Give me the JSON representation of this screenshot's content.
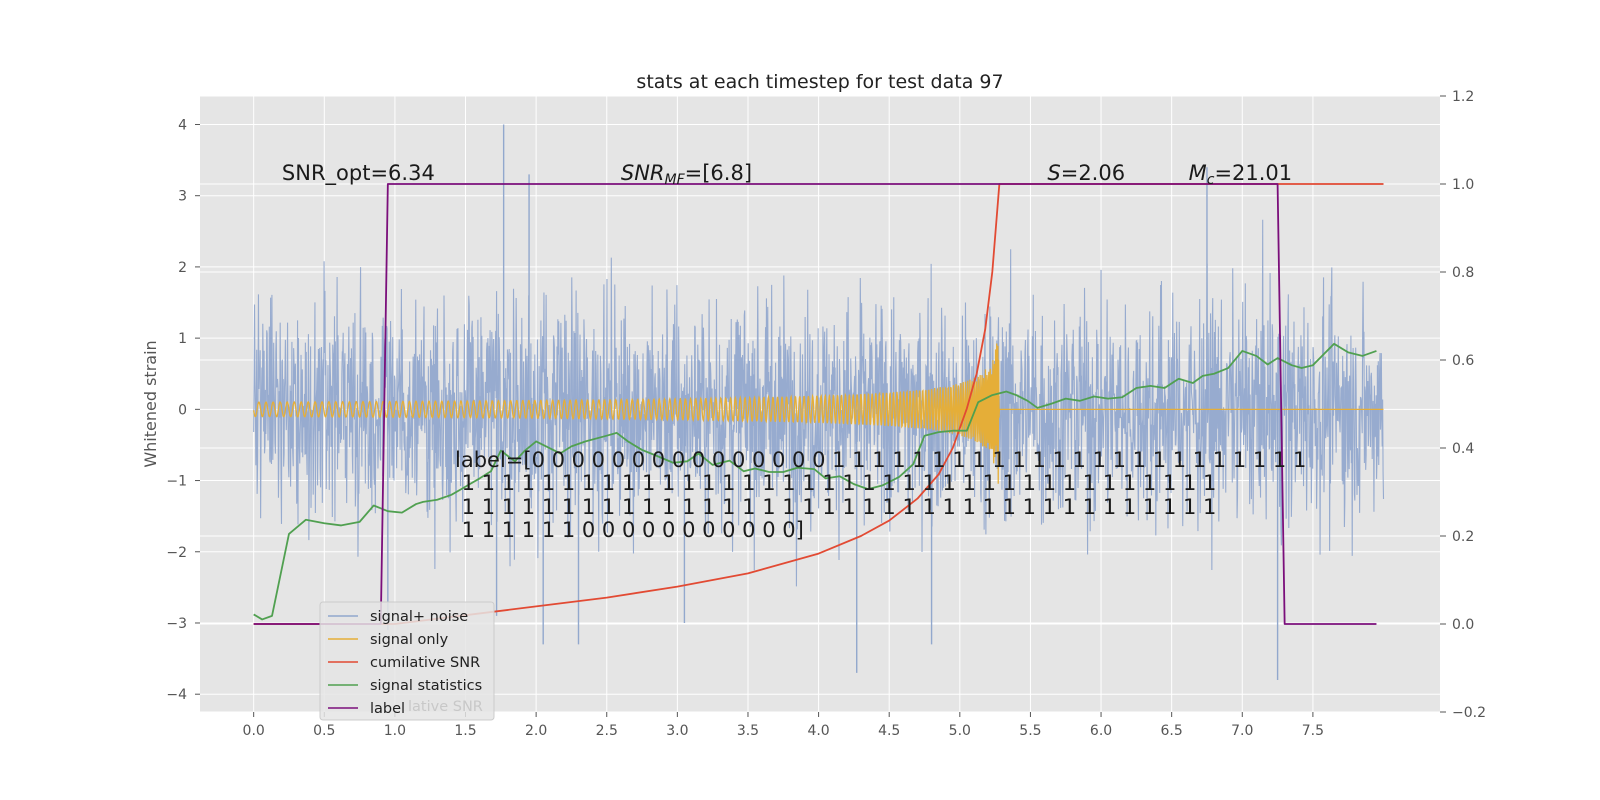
{
  "chart_data": {
    "type": "line",
    "title": "stats at each timestep for test data 97",
    "ylabel": "Whitened strain",
    "xlim": [
      -0.38,
      8.4
    ],
    "ylim": [
      -4.25,
      4.4
    ],
    "ylim_right": [
      -0.2,
      1.2
    ],
    "grid": true,
    "x_ticks": [
      "0.0",
      "0.5",
      "1.0",
      "1.5",
      "2.0",
      "2.5",
      "3.0",
      "3.5",
      "4.0",
      "4.5",
      "5.0",
      "5.5",
      "6.0",
      "6.5",
      "7.0",
      "7.5"
    ],
    "y_ticks": [
      "−4",
      "−3",
      "−2",
      "−1",
      "0",
      "1",
      "2",
      "3",
      "4"
    ],
    "y_right_ticks": [
      "−0.2",
      "0.0",
      "0.2",
      "0.4",
      "0.6",
      "0.8",
      "1.0",
      "1.2"
    ],
    "annotations": [
      {
        "text": "SNR_opt=6.34",
        "x": 0.2,
        "y": 3.22
      },
      {
        "text": "SNR_MF=[6.8]",
        "x": 2.6,
        "y": 3.22
      },
      {
        "text": "S=2.06",
        "x": 5.62,
        "y": 3.22
      },
      {
        "text": "M_c=21.01",
        "x": 6.62,
        "y": 3.22
      }
    ],
    "label_text_lines": [
      "label=[0 0 0 0 0 0 0 0 0 0 0 0 0 0 0 1 1 1 1 1 1 1 1 1 1 1 1 1 1 1 1 1 1 1 1 1 1 1 1",
      " 1 1 1 1 1 1 1 1 1 1 1 1 1 1 1 1 1 1 1 1 1 1 1 1 1 1 1 1 1 1 1 1 1 1 1 1 1 1",
      " 1 1 1 1 1 1 1 1 1 1 1 1 1 1 1 1 1 1 1 1 1 1 1 1 1 1 1 1 1 1 1 1 1 1 1 1 1 1",
      " 1 1 1 1 1 1 0 0 0 0 0 0 0 0 0 0 0]"
    ],
    "legend": {
      "location": "lower-left",
      "entries": [
        "signal+ noise",
        "signal only",
        "cumilative SNR",
        "signal statistics",
        "label"
      ],
      "ghost_text": "lative SNR"
    },
    "series": [
      {
        "name": "signal+ noise",
        "color": "#92a8cd",
        "axis": "left",
        "x_range": [
          0.0,
          8.0
        ],
        "typical_range": [
          -2.6,
          2.6
        ],
        "spikes": [
          {
            "x": 1.77,
            "y": 4.0
          },
          {
            "x": 1.95,
            "y": 3.3
          },
          {
            "x": 2.05,
            "y": -3.3
          },
          {
            "x": 6.75,
            "y": 3.4
          },
          {
            "x": 7.25,
            "y": -3.8
          },
          {
            "x": 4.27,
            "y": -3.7
          },
          {
            "x": 4.8,
            "y": -3.3
          },
          {
            "x": 2.3,
            "y": -3.3
          },
          {
            "x": 3.05,
            "y": -3.0
          },
          {
            "x": 1.72,
            "y": -2.9
          },
          {
            "x": 0.95,
            "y": -3.1
          }
        ]
      },
      {
        "name": "signal only",
        "color": "#e5ae38",
        "axis": "left",
        "chirp": {
          "start": 0.0,
          "merger": 5.28,
          "end": 8.0,
          "peak_amplitude": 1.25
        }
      },
      {
        "name": "cumilative SNR",
        "color": "#e24a33",
        "axis": "right",
        "x": [
          0.0,
          1.0,
          1.5,
          2.0,
          2.5,
          3.0,
          3.5,
          4.0,
          4.3,
          4.5,
          4.7,
          4.85,
          4.95,
          5.05,
          5.12,
          5.18,
          5.23,
          5.26,
          5.28,
          8.0
        ],
        "y": [
          0.0,
          0.0,
          0.02,
          0.04,
          0.06,
          0.085,
          0.115,
          0.16,
          0.2,
          0.235,
          0.285,
          0.34,
          0.4,
          0.49,
          0.57,
          0.67,
          0.8,
          0.92,
          1.0,
          1.0
        ]
      },
      {
        "name": "signal statistics",
        "color": "#50a050",
        "axis": "left",
        "x": [
          0.0,
          0.06,
          0.13,
          0.25,
          0.37,
          0.5,
          0.62,
          0.75,
          0.85,
          0.95,
          1.05,
          1.15,
          1.2,
          1.3,
          1.4,
          1.47,
          1.53,
          1.6,
          1.68,
          1.75,
          1.85,
          1.92,
          2.0,
          2.08,
          2.17,
          2.25,
          2.35,
          2.5,
          2.57,
          2.65,
          2.75,
          2.85,
          2.97,
          3.07,
          3.15,
          3.25,
          3.37,
          3.47,
          3.55,
          3.65,
          3.75,
          3.85,
          3.97,
          4.05,
          4.15,
          4.25,
          4.35,
          4.45,
          4.57,
          4.67,
          4.75,
          4.85,
          4.95,
          5.05,
          5.13,
          5.23,
          5.33,
          5.4,
          5.48,
          5.55,
          5.65,
          5.75,
          5.85,
          5.95,
          6.05,
          6.15,
          6.25,
          6.35,
          6.45,
          6.55,
          6.65,
          6.72,
          6.8,
          6.9,
          7.0,
          7.1,
          7.18,
          7.25,
          7.35,
          7.42,
          7.5,
          7.58,
          7.65,
          7.75,
          7.85,
          7.95
        ],
        "y": [
          -2.88,
          -2.95,
          -2.9,
          -1.75,
          -1.55,
          -1.6,
          -1.63,
          -1.58,
          -1.35,
          -1.43,
          -1.45,
          -1.33,
          -1.3,
          -1.27,
          -1.2,
          -1.12,
          -1.05,
          -0.97,
          -0.87,
          -0.58,
          -0.73,
          -0.58,
          -0.45,
          -0.53,
          -0.62,
          -0.52,
          -0.45,
          -0.37,
          -0.33,
          -0.45,
          -0.57,
          -0.65,
          -0.75,
          -0.73,
          -0.62,
          -0.78,
          -0.72,
          -0.87,
          -0.83,
          -0.88,
          -0.88,
          -0.82,
          -0.84,
          -0.97,
          -0.94,
          -1.05,
          -1.12,
          -1.07,
          -0.95,
          -0.77,
          -0.37,
          -0.32,
          -0.3,
          -0.3,
          0.1,
          0.2,
          0.25,
          0.2,
          0.12,
          0.02,
          0.08,
          0.15,
          0.12,
          0.18,
          0.15,
          0.17,
          0.3,
          0.33,
          0.3,
          0.43,
          0.37,
          0.47,
          0.5,
          0.58,
          0.82,
          0.75,
          0.63,
          0.72,
          0.62,
          0.58,
          0.62,
          0.78,
          0.92,
          0.8,
          0.75,
          0.82
        ]
      },
      {
        "name": "label",
        "color": "#7b0f7b",
        "axis": "right",
        "x": [
          0.0,
          0.9,
          0.95,
          7.25,
          7.3,
          7.95
        ],
        "y": [
          0.0,
          0.0,
          1.0,
          1.0,
          0.0,
          0.0
        ]
      }
    ]
  }
}
